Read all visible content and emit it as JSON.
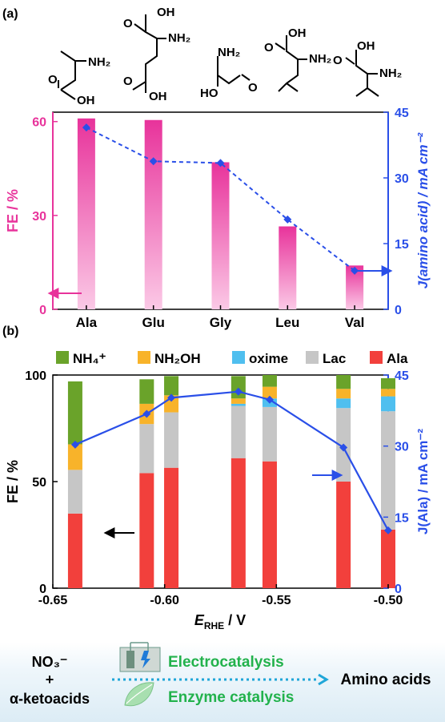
{
  "panel_a": {
    "label": "(a)",
    "molecules": [
      {
        "name": "alanine-structure",
        "groups": [
          "NH₂",
          "OH",
          "O"
        ]
      },
      {
        "name": "glutamic-acid-structure",
        "groups": [
          "OH",
          "O",
          "NH₂",
          "O",
          "OH"
        ]
      },
      {
        "name": "glycine-structure",
        "groups": [
          "NH₂",
          "HO",
          "O"
        ]
      },
      {
        "name": "leucine-structure",
        "groups": [
          "OH",
          "O",
          "NH₂"
        ]
      },
      {
        "name": "valine-structure",
        "groups": [
          "OH",
          "O",
          "NH₂"
        ]
      }
    ]
  },
  "panel_b": {
    "label": "(b)"
  },
  "scheme": {
    "reactant1": "NO₃⁻",
    "plus": "+",
    "reactant2": "α-ketoacids",
    "process1": "Electrocatalysis",
    "process2": "Enzyme catalysis",
    "product": "Amino acids",
    "colors": {
      "process": "#22b24c",
      "arrow": "#1fa6d8"
    }
  },
  "chart_data": [
    {
      "type": "bar",
      "categories": [
        "Ala",
        "Glu",
        "Gly",
        "Leu",
        "Val"
      ],
      "series": [
        {
          "values": [
            61,
            60.5,
            47,
            26.5,
            14
          ],
          "color": "#ec3fa0"
        }
      ],
      "ylabel": "FE / %",
      "ylim": [
        0,
        63
      ],
      "yticks": [
        0,
        30,
        60
      ],
      "secondary_axis": {
        "type": "line",
        "values": [
          41.5,
          33.8,
          33.4,
          20.5,
          8.8
        ],
        "ylabel": "J(amino acid) / mA cm⁻²",
        "ylim": [
          0,
          45
        ],
        "yticks": [
          0,
          15,
          30,
          45
        ],
        "color": "#2a4fe8",
        "style": "dashed"
      },
      "annotations": [
        "arrow-left-to-FE-axis",
        "arrow-right-to-J-axis"
      ]
    },
    {
      "type": "bar",
      "stacked": true,
      "x": [
        -0.64,
        -0.608,
        -0.597,
        -0.567,
        -0.553,
        -0.52,
        -0.5
      ],
      "xlabel": "E_RHE / V",
      "xlim": [
        -0.65,
        -0.5
      ],
      "xticks": [
        "-0.65",
        "-0.60",
        "-0.55",
        "-0.50"
      ],
      "ylabel": "FE / %",
      "ylim": [
        0,
        100
      ],
      "yticks": [
        0,
        50,
        100
      ],
      "series": [
        {
          "name": "Ala",
          "color": "#f2403c",
          "values": [
            35,
            54,
            56.5,
            61,
            59.5,
            50,
            27.5
          ]
        },
        {
          "name": "Lac",
          "color": "#c6c6c6",
          "values": [
            20.5,
            23,
            26,
            24.5,
            25.5,
            34.5,
            55.5
          ]
        },
        {
          "name": "oxime",
          "color": "#4fbfef",
          "values": [
            0,
            0,
            0,
            1,
            4,
            4.5,
            7
          ]
        },
        {
          "name": "NH₂OH",
          "color": "#f8b32a",
          "values": [
            12,
            9.5,
            8,
            2.5,
            5.5,
            4.5,
            3.5
          ]
        },
        {
          "name": "NH₄⁺",
          "color": "#6aa32a",
          "values": [
            29.5,
            11.5,
            9,
            10.5,
            5.5,
            6.5,
            5
          ]
        }
      ],
      "legend": "top",
      "secondary_axis": {
        "type": "line",
        "values": [
          30.3,
          36.8,
          40.2,
          41.5,
          39.8,
          29.7,
          12.2
        ],
        "ylabel": "J(Ala) / mA cm⁻²",
        "ylim": [
          0,
          45
        ],
        "yticks": [
          0,
          15,
          30,
          45
        ],
        "color": "#2a4fe8",
        "style": "solid"
      },
      "annotations": [
        "arrow-left-to-FE-axis",
        "arrow-right-to-J-axis"
      ]
    }
  ]
}
